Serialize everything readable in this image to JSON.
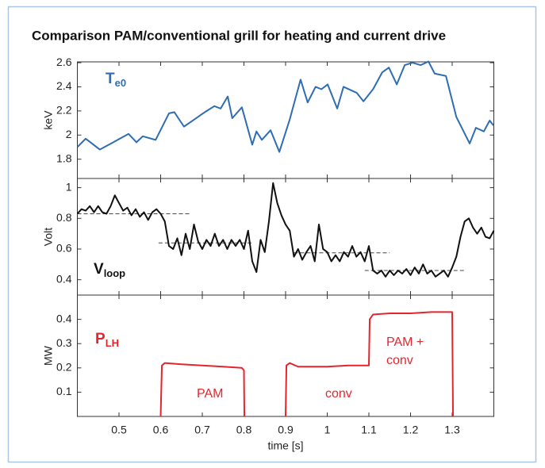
{
  "chart_data": [
    {
      "type": "line",
      "title": "Comparison PAM/conventional grill for heating and current drive",
      "ylabel": "keV",
      "label": {
        "text": "T",
        "sub": "e0"
      },
      "color": "#2f6db3",
      "x": [
        0.4,
        0.42,
        0.454,
        0.481,
        0.523,
        0.542,
        0.557,
        0.588,
        0.62,
        0.633,
        0.656,
        0.681,
        0.706,
        0.729,
        0.744,
        0.761,
        0.772,
        0.795,
        0.82,
        0.83,
        0.843,
        0.864,
        0.885,
        0.91,
        0.936,
        0.953,
        0.972,
        0.986,
        1.001,
        1.024,
        1.039,
        1.071,
        1.087,
        1.11,
        1.132,
        1.148,
        1.167,
        1.186,
        1.205,
        1.224,
        1.243,
        1.258,
        1.285,
        1.31,
        1.342,
        1.357,
        1.376,
        1.39,
        1.399
      ],
      "values": [
        1.9,
        1.97,
        1.88,
        1.93,
        2.01,
        1.94,
        1.99,
        1.96,
        2.18,
        2.19,
        2.07,
        2.13,
        2.19,
        2.24,
        2.22,
        2.32,
        2.14,
        2.23,
        1.92,
        2.03,
        1.96,
        2.04,
        1.86,
        2.13,
        2.46,
        2.27,
        2.4,
        2.38,
        2.42,
        2.22,
        2.4,
        2.35,
        2.28,
        2.38,
        2.52,
        2.56,
        2.42,
        2.58,
        2.6,
        2.58,
        2.61,
        2.51,
        2.49,
        2.15,
        1.93,
        2.06,
        2.03,
        2.12,
        2.08
      ],
      "xlim": [
        0.4,
        1.4
      ],
      "xticks": [
        0.5,
        0.6,
        0.7,
        0.8,
        0.9,
        1,
        1.1,
        1.2,
        1.3
      ],
      "ylim": [
        1.64,
        2.607
      ],
      "yticks": [
        1.8,
        2,
        2.2,
        2.4,
        2.6
      ]
    },
    {
      "type": "line",
      "ylabel": "Volt",
      "label": {
        "text": "V",
        "sub": "loop"
      },
      "color": "#111111",
      "x": [
        0.4,
        0.41,
        0.42,
        0.43,
        0.44,
        0.45,
        0.46,
        0.47,
        0.48,
        0.49,
        0.5,
        0.51,
        0.52,
        0.53,
        0.54,
        0.55,
        0.56,
        0.57,
        0.58,
        0.59,
        0.6,
        0.61,
        0.62,
        0.63,
        0.64,
        0.65,
        0.66,
        0.67,
        0.68,
        0.69,
        0.7,
        0.71,
        0.72,
        0.73,
        0.74,
        0.75,
        0.76,
        0.77,
        0.78,
        0.79,
        0.8,
        0.81,
        0.82,
        0.83,
        0.84,
        0.85,
        0.86,
        0.87,
        0.88,
        0.89,
        0.9,
        0.91,
        0.92,
        0.93,
        0.94,
        0.95,
        0.96,
        0.97,
        0.98,
        0.99,
        1.0,
        1.01,
        1.02,
        1.03,
        1.04,
        1.05,
        1.06,
        1.07,
        1.08,
        1.09,
        1.1,
        1.11,
        1.12,
        1.13,
        1.14,
        1.15,
        1.16,
        1.17,
        1.18,
        1.19,
        1.2,
        1.21,
        1.22,
        1.23,
        1.24,
        1.25,
        1.26,
        1.27,
        1.28,
        1.29,
        1.3,
        1.31,
        1.32,
        1.33,
        1.34,
        1.35,
        1.36,
        1.37,
        1.38,
        1.39,
        1.4
      ],
      "values": [
        0.83,
        0.86,
        0.85,
        0.88,
        0.84,
        0.88,
        0.84,
        0.83,
        0.88,
        0.95,
        0.9,
        0.85,
        0.87,
        0.82,
        0.86,
        0.81,
        0.84,
        0.79,
        0.84,
        0.86,
        0.83,
        0.78,
        0.62,
        0.6,
        0.67,
        0.56,
        0.7,
        0.6,
        0.76,
        0.65,
        0.6,
        0.66,
        0.62,
        0.7,
        0.62,
        0.66,
        0.6,
        0.66,
        0.62,
        0.66,
        0.6,
        0.72,
        0.52,
        0.45,
        0.66,
        0.58,
        0.78,
        1.03,
        0.9,
        0.82,
        0.76,
        0.72,
        0.55,
        0.6,
        0.53,
        0.58,
        0.62,
        0.52,
        0.76,
        0.6,
        0.58,
        0.52,
        0.56,
        0.52,
        0.58,
        0.55,
        0.62,
        0.55,
        0.58,
        0.52,
        0.62,
        0.46,
        0.44,
        0.46,
        0.42,
        0.46,
        0.43,
        0.46,
        0.44,
        0.47,
        0.43,
        0.48,
        0.44,
        0.5,
        0.44,
        0.46,
        0.42,
        0.44,
        0.46,
        0.42,
        0.48,
        0.55,
        0.68,
        0.78,
        0.8,
        0.74,
        0.7,
        0.74,
        0.68,
        0.67,
        0.72
      ],
      "reference_lines": [
        {
          "x": [
            0.4,
            0.67
          ],
          "values": [
            0.83,
            0.83
          ]
        },
        {
          "x": [
            0.595,
            0.82
          ],
          "values": [
            0.64,
            0.64
          ]
        },
        {
          "x": [
            0.92,
            1.15
          ],
          "values": [
            0.575,
            0.575
          ]
        },
        {
          "x": [
            1.09,
            1.33
          ],
          "values": [
            0.46,
            0.46
          ]
        }
      ],
      "xlim": [
        0.4,
        1.4
      ],
      "xticks": [
        0.5,
        0.6,
        0.7,
        0.8,
        0.9,
        1,
        1.1,
        1.2,
        1.3
      ],
      "ylim": [
        0.3,
        1.06
      ],
      "yticks": [
        0.4,
        0.6,
        0.8,
        1
      ]
    },
    {
      "type": "line",
      "ylabel": "MW",
      "xlabel": "time [s]",
      "label": {
        "text": "P",
        "sub": "LH"
      },
      "color": "#e3262e",
      "x": [
        0.6,
        0.603,
        0.61,
        0.65,
        0.7,
        0.75,
        0.795,
        0.8,
        0.801,
        0.85,
        0.9,
        0.902,
        0.91,
        0.93,
        1.0,
        1.05,
        1.1,
        1.102,
        1.11,
        1.15,
        1.2,
        1.25,
        1.28,
        1.3,
        1.302
      ],
      "values": [
        0,
        0.21,
        0.22,
        0.215,
        0.21,
        0.205,
        0.2,
        0.19,
        0,
        null,
        0,
        0.21,
        0.22,
        0.205,
        0.205,
        0.21,
        0.21,
        0.4,
        0.42,
        0.425,
        0.425,
        0.43,
        0.43,
        0.43,
        0
      ],
      "annotations": [
        "PAM",
        "conv",
        "PAM +",
        "conv"
      ],
      "xlim": [
        0.4,
        1.4
      ],
      "xticks": [
        0.5,
        0.6,
        0.7,
        0.8,
        0.9,
        1,
        1.1,
        1.2,
        1.3
      ],
      "ylim": [
        0,
        0.5
      ],
      "yticks": [
        0.1,
        0.2,
        0.3,
        0.4
      ]
    }
  ]
}
